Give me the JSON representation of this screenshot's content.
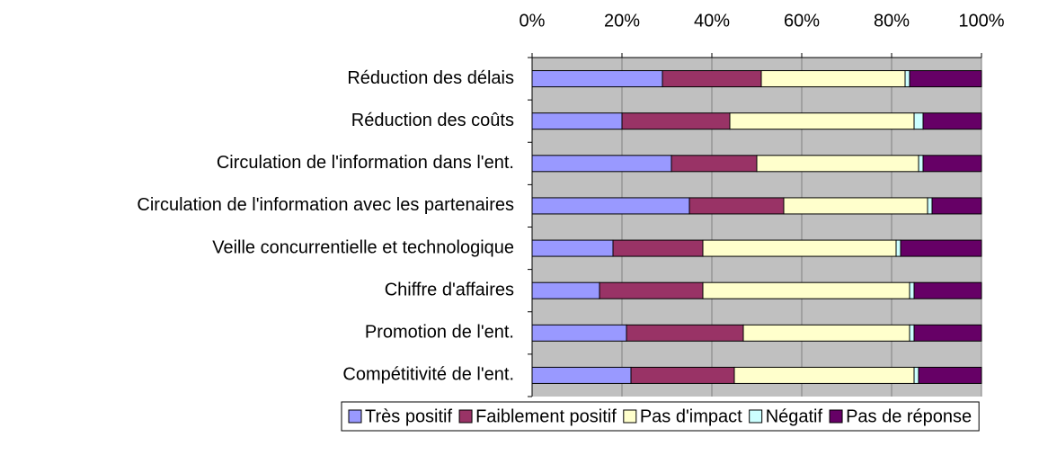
{
  "chart_data": {
    "type": "stacked_bar_horizontal",
    "categories": [
      "Réduction des délais",
      "Réduction des coûts",
      "Circulation de l'information dans l'ent.",
      "Circulation de l'information avec les partenaires",
      "Veille concurrentielle et technologique",
      "Chiffre d'affaires",
      "Promotion de l'ent.",
      "Compétitivité de l'ent."
    ],
    "series": [
      {
        "name": "Très positif",
        "color": "#9999ff",
        "values": [
          29,
          20,
          31,
          35,
          18,
          15,
          21,
          22
        ]
      },
      {
        "name": "Faiblement positif",
        "color": "#993366",
        "values": [
          22,
          24,
          19,
          21,
          20,
          23,
          26,
          23
        ]
      },
      {
        "name": "Pas d'impact",
        "color": "#ffffcc",
        "values": [
          32,
          41,
          36,
          32,
          43,
          46,
          37,
          40
        ]
      },
      {
        "name": "Négatif",
        "color": "#ccffff",
        "values": [
          1,
          2,
          1,
          1,
          1,
          1,
          1,
          1
        ]
      },
      {
        "name": "Pas de réponse",
        "color": "#660066",
        "values": [
          16,
          13,
          13,
          11,
          18,
          15,
          15,
          14
        ]
      }
    ],
    "xlim": [
      0,
      100
    ],
    "xticks": [
      {
        "value": 0,
        "label": "0%"
      },
      {
        "value": 20,
        "label": "20%"
      },
      {
        "value": 40,
        "label": "40%"
      },
      {
        "value": 60,
        "label": "60%"
      },
      {
        "value": 80,
        "label": "80%"
      },
      {
        "value": 100,
        "label": "100%"
      }
    ],
    "grid": true,
    "legend": "bottom"
  }
}
